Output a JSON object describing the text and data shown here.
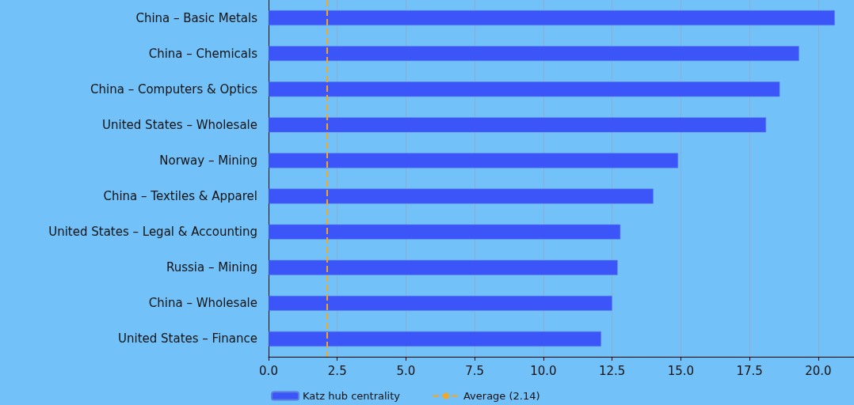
{
  "chart_data": {
    "type": "bar",
    "orientation": "horizontal",
    "categories": [
      "China – Basic Metals",
      "China – Chemicals",
      "China – Computers & Optics",
      "United States – Wholesale",
      "Norway – Mining",
      "China – Textiles & Apparel",
      "United States – Legal & Accounting",
      "Russia – Mining",
      "China – Wholesale",
      "United States – Finance"
    ],
    "series": [
      {
        "name": "Katz hub centrality",
        "color": "#3b55f9",
        "values": [
          20.6,
          19.3,
          18.6,
          18.1,
          14.9,
          14.0,
          12.8,
          12.7,
          12.5,
          12.1
        ]
      }
    ],
    "xlim": [
      0,
      21.3
    ],
    "xticks": [
      {
        "value": 0,
        "label": "0.0"
      },
      {
        "value": 2.5,
        "label": "2.5"
      },
      {
        "value": 5,
        "label": "5.0"
      },
      {
        "value": 7.5,
        "label": "7.5"
      },
      {
        "value": 10,
        "label": "10.0"
      },
      {
        "value": 12.5,
        "label": "12.5"
      },
      {
        "value": 15,
        "label": "15.0"
      },
      {
        "value": 17.5,
        "label": "17.5"
      },
      {
        "value": 20,
        "label": "20.0"
      }
    ],
    "ref_lines": [
      {
        "axis": "x",
        "value": 2.14,
        "label": "Average (2.14)",
        "color": "#f5a623",
        "line_style": "dashed"
      }
    ],
    "grid": "x",
    "legend": "bottom"
  }
}
